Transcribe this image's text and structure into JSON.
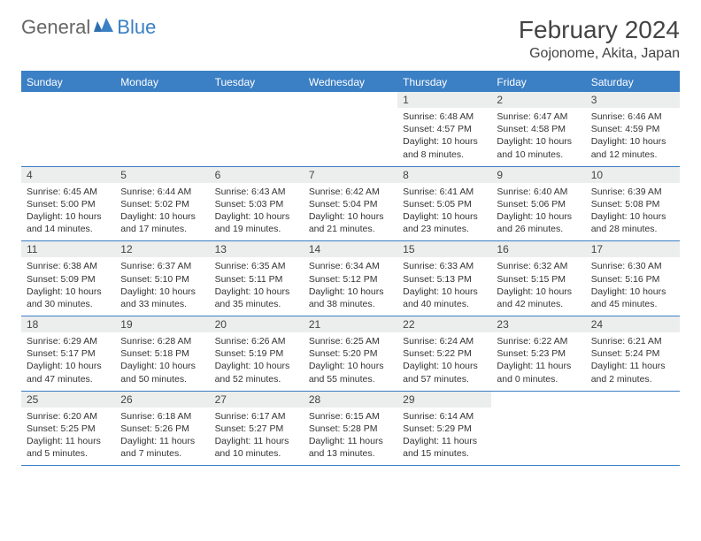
{
  "logo": {
    "text_general": "General",
    "text_blue": "Blue"
  },
  "header": {
    "title": "February 2024",
    "location": "Gojonome, Akita, Japan"
  },
  "colors": {
    "brand_blue": "#3b7fc4",
    "header_text": "#ffffff",
    "daynum_bg": "#eceded",
    "border": "#3b7fc4",
    "body_text": "#333333",
    "background": "#ffffff"
  },
  "layout": {
    "columns": 7,
    "rows": 5
  },
  "day_names": [
    "Sunday",
    "Monday",
    "Tuesday",
    "Wednesday",
    "Thursday",
    "Friday",
    "Saturday"
  ],
  "days": [
    {
      "n": "",
      "sunrise": "",
      "sunset": "",
      "daylight": ""
    },
    {
      "n": "",
      "sunrise": "",
      "sunset": "",
      "daylight": ""
    },
    {
      "n": "",
      "sunrise": "",
      "sunset": "",
      "daylight": ""
    },
    {
      "n": "",
      "sunrise": "",
      "sunset": "",
      "daylight": ""
    },
    {
      "n": "1",
      "sunrise": "Sunrise: 6:48 AM",
      "sunset": "Sunset: 4:57 PM",
      "daylight": "Daylight: 10 hours and 8 minutes."
    },
    {
      "n": "2",
      "sunrise": "Sunrise: 6:47 AM",
      "sunset": "Sunset: 4:58 PM",
      "daylight": "Daylight: 10 hours and 10 minutes."
    },
    {
      "n": "3",
      "sunrise": "Sunrise: 6:46 AM",
      "sunset": "Sunset: 4:59 PM",
      "daylight": "Daylight: 10 hours and 12 minutes."
    },
    {
      "n": "4",
      "sunrise": "Sunrise: 6:45 AM",
      "sunset": "Sunset: 5:00 PM",
      "daylight": "Daylight: 10 hours and 14 minutes."
    },
    {
      "n": "5",
      "sunrise": "Sunrise: 6:44 AM",
      "sunset": "Sunset: 5:02 PM",
      "daylight": "Daylight: 10 hours and 17 minutes."
    },
    {
      "n": "6",
      "sunrise": "Sunrise: 6:43 AM",
      "sunset": "Sunset: 5:03 PM",
      "daylight": "Daylight: 10 hours and 19 minutes."
    },
    {
      "n": "7",
      "sunrise": "Sunrise: 6:42 AM",
      "sunset": "Sunset: 5:04 PM",
      "daylight": "Daylight: 10 hours and 21 minutes."
    },
    {
      "n": "8",
      "sunrise": "Sunrise: 6:41 AM",
      "sunset": "Sunset: 5:05 PM",
      "daylight": "Daylight: 10 hours and 23 minutes."
    },
    {
      "n": "9",
      "sunrise": "Sunrise: 6:40 AM",
      "sunset": "Sunset: 5:06 PM",
      "daylight": "Daylight: 10 hours and 26 minutes."
    },
    {
      "n": "10",
      "sunrise": "Sunrise: 6:39 AM",
      "sunset": "Sunset: 5:08 PM",
      "daylight": "Daylight: 10 hours and 28 minutes."
    },
    {
      "n": "11",
      "sunrise": "Sunrise: 6:38 AM",
      "sunset": "Sunset: 5:09 PM",
      "daylight": "Daylight: 10 hours and 30 minutes."
    },
    {
      "n": "12",
      "sunrise": "Sunrise: 6:37 AM",
      "sunset": "Sunset: 5:10 PM",
      "daylight": "Daylight: 10 hours and 33 minutes."
    },
    {
      "n": "13",
      "sunrise": "Sunrise: 6:35 AM",
      "sunset": "Sunset: 5:11 PM",
      "daylight": "Daylight: 10 hours and 35 minutes."
    },
    {
      "n": "14",
      "sunrise": "Sunrise: 6:34 AM",
      "sunset": "Sunset: 5:12 PM",
      "daylight": "Daylight: 10 hours and 38 minutes."
    },
    {
      "n": "15",
      "sunrise": "Sunrise: 6:33 AM",
      "sunset": "Sunset: 5:13 PM",
      "daylight": "Daylight: 10 hours and 40 minutes."
    },
    {
      "n": "16",
      "sunrise": "Sunrise: 6:32 AM",
      "sunset": "Sunset: 5:15 PM",
      "daylight": "Daylight: 10 hours and 42 minutes."
    },
    {
      "n": "17",
      "sunrise": "Sunrise: 6:30 AM",
      "sunset": "Sunset: 5:16 PM",
      "daylight": "Daylight: 10 hours and 45 minutes."
    },
    {
      "n": "18",
      "sunrise": "Sunrise: 6:29 AM",
      "sunset": "Sunset: 5:17 PM",
      "daylight": "Daylight: 10 hours and 47 minutes."
    },
    {
      "n": "19",
      "sunrise": "Sunrise: 6:28 AM",
      "sunset": "Sunset: 5:18 PM",
      "daylight": "Daylight: 10 hours and 50 minutes."
    },
    {
      "n": "20",
      "sunrise": "Sunrise: 6:26 AM",
      "sunset": "Sunset: 5:19 PM",
      "daylight": "Daylight: 10 hours and 52 minutes."
    },
    {
      "n": "21",
      "sunrise": "Sunrise: 6:25 AM",
      "sunset": "Sunset: 5:20 PM",
      "daylight": "Daylight: 10 hours and 55 minutes."
    },
    {
      "n": "22",
      "sunrise": "Sunrise: 6:24 AM",
      "sunset": "Sunset: 5:22 PM",
      "daylight": "Daylight: 10 hours and 57 minutes."
    },
    {
      "n": "23",
      "sunrise": "Sunrise: 6:22 AM",
      "sunset": "Sunset: 5:23 PM",
      "daylight": "Daylight: 11 hours and 0 minutes."
    },
    {
      "n": "24",
      "sunrise": "Sunrise: 6:21 AM",
      "sunset": "Sunset: 5:24 PM",
      "daylight": "Daylight: 11 hours and 2 minutes."
    },
    {
      "n": "25",
      "sunrise": "Sunrise: 6:20 AM",
      "sunset": "Sunset: 5:25 PM",
      "daylight": "Daylight: 11 hours and 5 minutes."
    },
    {
      "n": "26",
      "sunrise": "Sunrise: 6:18 AM",
      "sunset": "Sunset: 5:26 PM",
      "daylight": "Daylight: 11 hours and 7 minutes."
    },
    {
      "n": "27",
      "sunrise": "Sunrise: 6:17 AM",
      "sunset": "Sunset: 5:27 PM",
      "daylight": "Daylight: 11 hours and 10 minutes."
    },
    {
      "n": "28",
      "sunrise": "Sunrise: 6:15 AM",
      "sunset": "Sunset: 5:28 PM",
      "daylight": "Daylight: 11 hours and 13 minutes."
    },
    {
      "n": "29",
      "sunrise": "Sunrise: 6:14 AM",
      "sunset": "Sunset: 5:29 PM",
      "daylight": "Daylight: 11 hours and 15 minutes."
    },
    {
      "n": "",
      "sunrise": "",
      "sunset": "",
      "daylight": ""
    },
    {
      "n": "",
      "sunrise": "",
      "sunset": "",
      "daylight": ""
    }
  ]
}
